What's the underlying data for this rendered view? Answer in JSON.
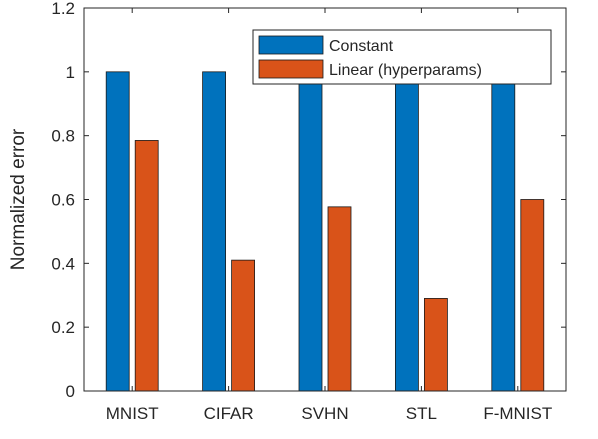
{
  "chart_data": {
    "type": "bar",
    "title": "",
    "xlabel": "",
    "ylabel": "Normalized error",
    "ylim": [
      0,
      1.2
    ],
    "yticks": [
      "0",
      "0.2",
      "0.4",
      "0.6",
      "0.8",
      "1",
      "1.2"
    ],
    "grid": false,
    "legend_position": "top-right",
    "categories": [
      "MNIST",
      "CIFAR",
      "SVHN",
      "STL",
      "F-MNIST"
    ],
    "series": [
      {
        "name": "Constant",
        "color": "#0072BD",
        "values": [
          1,
          1,
          1,
          1,
          1
        ]
      },
      {
        "name": "Linear (hyperparams)",
        "color": "#D95319",
        "values": [
          0.785,
          0.41,
          0.577,
          0.29,
          0.6
        ]
      }
    ]
  }
}
